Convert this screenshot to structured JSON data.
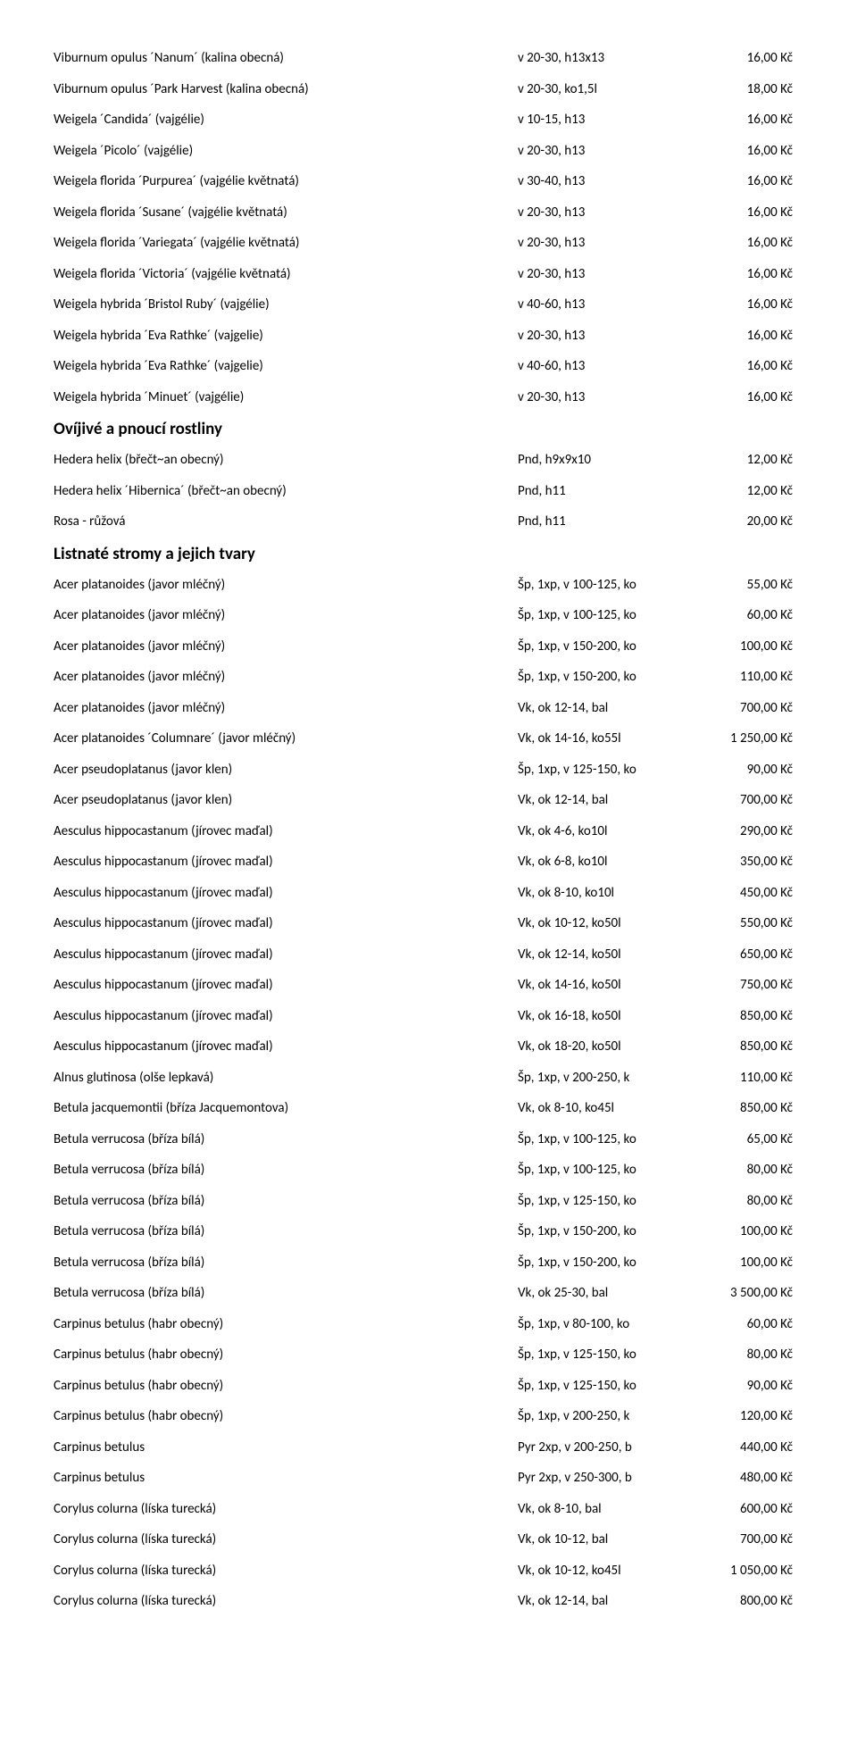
{
  "rows": [
    {
      "type": "item",
      "name": "Viburnum opulus ´Nanum´ (kalina obecná)",
      "spec": "v 20-30, h13x13",
      "price": "16,00 Kč"
    },
    {
      "type": "item",
      "name": "Viburnum opulus ´Park Harvest (kalina obecná)",
      "spec": "v 20-30, ko1,5l",
      "price": "18,00 Kč"
    },
    {
      "type": "item",
      "name": "Weigela ´Candida´ (vajgélie)",
      "spec": "v 10-15, h13",
      "price": "16,00 Kč"
    },
    {
      "type": "item",
      "name": "Weigela ´Picolo´ (vajgélie)",
      "spec": "v 20-30, h13",
      "price": "16,00 Kč"
    },
    {
      "type": "item",
      "name": "Weigela florida ´Purpurea´ (vajgélie květnatá)",
      "spec": "v 30-40, h13",
      "price": "16,00 Kč"
    },
    {
      "type": "item",
      "name": "Weigela florida ´Susane´ (vajgélie květnatá)",
      "spec": "v 20-30, h13",
      "price": "16,00 Kč"
    },
    {
      "type": "item",
      "name": "Weigela florida ´Variegata´ (vajgélie květnatá)",
      "spec": "v 20-30, h13",
      "price": "16,00 Kč"
    },
    {
      "type": "item",
      "name": "Weigela florida ´Victoria´ (vajgélie květnatá)",
      "spec": "v 20-30, h13",
      "price": "16,00 Kč"
    },
    {
      "type": "item",
      "name": "Weigela hybrida ´Bristol Ruby´ (vajgélie)",
      "spec": "v 40-60, h13",
      "price": "16,00 Kč"
    },
    {
      "type": "item",
      "name": "Weigela hybrida ´Eva Rathke´ (vajgelie)",
      "spec": "v 20-30, h13",
      "price": "16,00 Kč"
    },
    {
      "type": "item",
      "name": "Weigela hybrida ´Eva Rathke´ (vajgelie)",
      "spec": "v 40-60, h13",
      "price": "16,00 Kč"
    },
    {
      "type": "item",
      "name": "Weigela hybrida ´Minuet´ (vajgélie)",
      "spec": "v 20-30, h13",
      "price": "16,00 Kč"
    },
    {
      "type": "section",
      "name": "Ovíjivé a pnoucí rostliny"
    },
    {
      "type": "item",
      "name": "Hedera helix (břečt~an obecný)",
      "spec": "Pnd, h9x9x10",
      "price": "12,00 Kč"
    },
    {
      "type": "item",
      "name": "Hedera helix ´Hibernica´ (břečt~an obecný)",
      "spec": "Pnd, h11",
      "price": "12,00 Kč"
    },
    {
      "type": "item",
      "name": "Rosa - růžová",
      "spec": "Pnd, h11",
      "price": "20,00 Kč"
    },
    {
      "type": "section",
      "name": "Listnaté stromy a jejich tvary"
    },
    {
      "type": "item",
      "name": "Acer platanoides (javor mléčný)",
      "spec": "Šp, 1xp, v 100-125, ko",
      "price": "55,00 Kč"
    },
    {
      "type": "item",
      "name": "Acer platanoides (javor mléčný)",
      "spec": "Šp, 1xp, v 100-125, ko",
      "price": "60,00 Kč"
    },
    {
      "type": "item",
      "name": "Acer platanoides (javor mléčný)",
      "spec": "Šp, 1xp, v 150-200, ko",
      "price": "100,00 Kč"
    },
    {
      "type": "item",
      "name": "Acer platanoides (javor mléčný)",
      "spec": "Šp, 1xp, v 150-200, ko",
      "price": "110,00 Kč"
    },
    {
      "type": "item",
      "name": "Acer platanoides (javor mléčný)",
      "spec": "Vk, ok 12-14, bal",
      "price": "700,00 Kč"
    },
    {
      "type": "item",
      "name": "Acer platanoides ´Columnare´ (javor mléčný)",
      "spec": "Vk, ok 14-16, ko55l",
      "price": "1 250,00 Kč"
    },
    {
      "type": "item",
      "name": "Acer pseudoplatanus (javor klen)",
      "spec": "Šp, 1xp, v 125-150, ko",
      "price": "90,00 Kč"
    },
    {
      "type": "item",
      "name": "Acer pseudoplatanus (javor klen)",
      "spec": "Vk, ok 12-14, bal",
      "price": "700,00 Kč"
    },
    {
      "type": "item",
      "name": "Aesculus hippocastanum (jírovec maďal)",
      "spec": "Vk, ok 4-6, ko10l",
      "price": "290,00 Kč"
    },
    {
      "type": "item",
      "name": "Aesculus hippocastanum (jírovec maďal)",
      "spec": "Vk, ok 6-8, ko10l",
      "price": "350,00 Kč"
    },
    {
      "type": "item",
      "name": "Aesculus hippocastanum (jírovec maďal)",
      "spec": "Vk, ok 8-10, ko10l",
      "price": "450,00 Kč"
    },
    {
      "type": "item",
      "name": "Aesculus hippocastanum (jírovec maďal)",
      "spec": "Vk, ok 10-12, ko50l",
      "price": "550,00 Kč"
    },
    {
      "type": "item",
      "name": "Aesculus hippocastanum (jírovec maďal)",
      "spec": "Vk, ok 12-14, ko50l",
      "price": "650,00 Kč"
    },
    {
      "type": "item",
      "name": "Aesculus hippocastanum (jírovec maďal)",
      "spec": "Vk, ok 14-16, ko50l",
      "price": "750,00 Kč"
    },
    {
      "type": "item",
      "name": "Aesculus hippocastanum (jírovec maďal)",
      "spec": "Vk, ok 16-18, ko50l",
      "price": "850,00 Kč"
    },
    {
      "type": "item",
      "name": "Aesculus hippocastanum (jírovec maďal)",
      "spec": "Vk, ok 18-20, ko50l",
      "price": "850,00 Kč"
    },
    {
      "type": "item",
      "name": "Alnus glutinosa (olše lepkavá)",
      "spec": "Šp, 1xp, v 200-250, k",
      "price": "110,00 Kč"
    },
    {
      "type": "item",
      "name": "Betula jacquemontii (bříza Jacquemontova)",
      "spec": "Vk, ok 8-10, ko45l",
      "price": "850,00 Kč"
    },
    {
      "type": "item",
      "name": "Betula verrucosa (bříza bílá)",
      "spec": "Šp, 1xp, v 100-125, ko",
      "price": "65,00 Kč"
    },
    {
      "type": "item",
      "name": "Betula verrucosa (bříza bílá)",
      "spec": "Šp, 1xp, v 100-125, ko",
      "price": "80,00 Kč"
    },
    {
      "type": "item",
      "name": "Betula verrucosa (bříza bílá)",
      "spec": "Šp, 1xp, v 125-150, ko",
      "price": "80,00 Kč"
    },
    {
      "type": "item",
      "name": "Betula verrucosa (bříza bílá)",
      "spec": "Šp, 1xp, v 150-200, ko",
      "price": "100,00 Kč"
    },
    {
      "type": "item",
      "name": "Betula verrucosa (bříza bílá)",
      "spec": "Šp, 1xp, v 150-200, ko",
      "price": "100,00 Kč"
    },
    {
      "type": "item",
      "name": "Betula verrucosa (bříza bílá)",
      "spec": "Vk, ok 25-30, bal",
      "price": "3 500,00 Kč"
    },
    {
      "type": "item",
      "name": "Carpinus betulus (habr obecný)",
      "spec": "Šp, 1xp, v 80-100, ko",
      "price": "60,00 Kč"
    },
    {
      "type": "item",
      "name": "Carpinus betulus (habr obecný)",
      "spec": "Šp, 1xp, v 125-150, ko",
      "price": "80,00 Kč"
    },
    {
      "type": "item",
      "name": "Carpinus betulus (habr obecný)",
      "spec": "Šp, 1xp, v 125-150, ko",
      "price": "90,00 Kč"
    },
    {
      "type": "item",
      "name": "Carpinus betulus (habr obecný)",
      "spec": "Šp, 1xp, v 200-250, k",
      "price": "120,00 Kč"
    },
    {
      "type": "item",
      "name": "Carpinus betulus",
      "spec": "Pyr 2xp, v 200-250, b",
      "price": "440,00 Kč"
    },
    {
      "type": "item",
      "name": "Carpinus betulus",
      "spec": "Pyr 2xp, v 250-300, b",
      "price": "480,00 Kč"
    },
    {
      "type": "item",
      "name": "Corylus colurna (líska turecká)",
      "spec": "Vk, ok 8-10, bal",
      "price": "600,00 Kč"
    },
    {
      "type": "item",
      "name": "Corylus colurna (líska turecká)",
      "spec": "Vk, ok 10-12, bal",
      "price": "700,00 Kč"
    },
    {
      "type": "item",
      "name": "Corylus colurna (líska turecká)",
      "spec": "Vk, ok 10-12, ko45l",
      "price": "1 050,00 Kč"
    },
    {
      "type": "item",
      "name": "Corylus colurna (líska turecká)",
      "spec": "Vk, ok 12-14, bal",
      "price": "800,00 Kč"
    }
  ]
}
